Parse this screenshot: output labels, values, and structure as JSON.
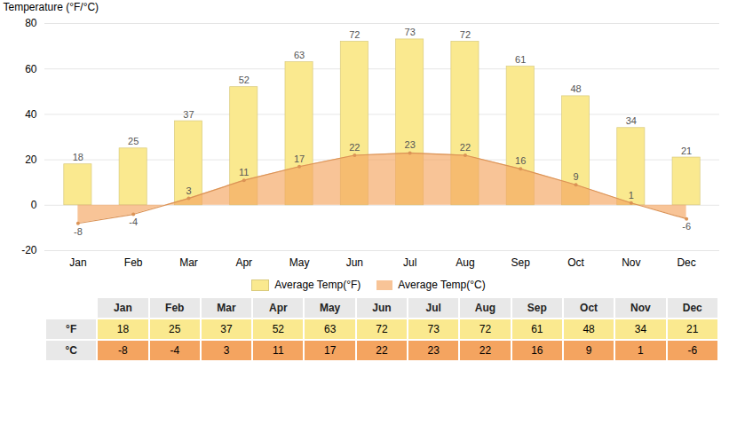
{
  "chart_data": {
    "type": "bar",
    "categories": [
      "Jan",
      "Feb",
      "Mar",
      "Apr",
      "May",
      "Jun",
      "Jul",
      "Aug",
      "Sep",
      "Oct",
      "Nov",
      "Dec"
    ],
    "series": [
      {
        "name": "Average Temp(°F)",
        "type": "bar",
        "color": "#FAE98F",
        "values": [
          18,
          25,
          37,
          52,
          63,
          72,
          73,
          72,
          61,
          48,
          34,
          21
        ]
      },
      {
        "name": "Average Temp(°C)",
        "type": "area",
        "color": "#F4A460",
        "values": [
          -8,
          -4,
          3,
          11,
          17,
          22,
          23,
          22,
          16,
          9,
          1,
          -6
        ]
      }
    ],
    "ylabel": "Temperature (°F/°C)",
    "ylim": [
      -20,
      80
    ],
    "yticks": [
      -20,
      0,
      20,
      40,
      60,
      80
    ],
    "grid": true,
    "legend": "bottom",
    "data_labels": true,
    "table_row_labels": [
      "°F",
      "°C"
    ]
  }
}
